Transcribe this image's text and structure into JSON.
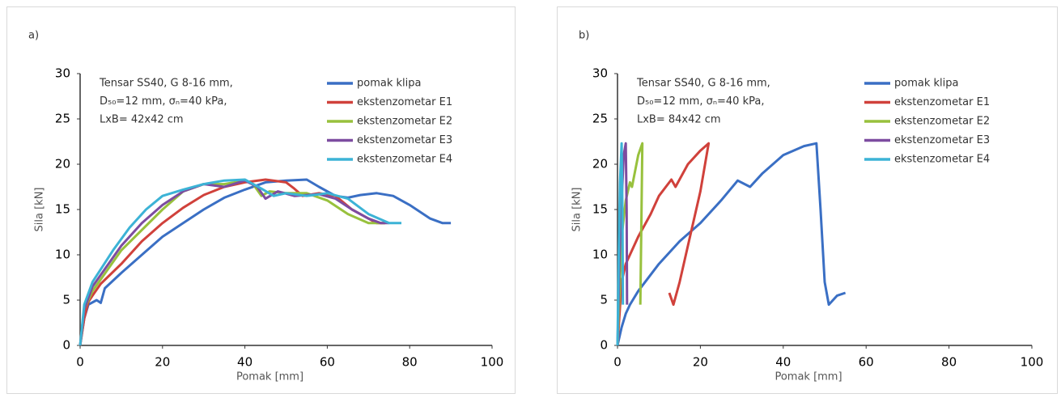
{
  "chart_data": [
    {
      "type": "line",
      "panel_label": "a)",
      "xlabel": "Pomak [mm]",
      "ylabel": "Sila [kN]",
      "annotations": [
        "Tensar SS40, G 8-16 mm,",
        "D₅₀=12 mm, σₙ=40 kPa,",
        "LxB= 42x42 cm"
      ],
      "xlim": [
        0,
        100
      ],
      "ylim": [
        0,
        30
      ],
      "xticks": [
        0,
        20,
        40,
        60,
        80,
        100
      ],
      "yticks": [
        0,
        5,
        10,
        15,
        20,
        25,
        30
      ],
      "series": [
        {
          "name": "pomak klipa",
          "color": "#3a6fc4",
          "x": [
            0,
            1,
            2,
            4,
            5,
            6,
            10,
            15,
            20,
            25,
            30,
            35,
            40,
            45,
            50,
            55,
            58,
            62,
            65,
            68,
            72,
            76,
            80,
            85,
            88,
            90
          ],
          "values": [
            0,
            3,
            4.5,
            5,
            4.7,
            6.3,
            8,
            10,
            12,
            13.5,
            15,
            16.3,
            17.2,
            18,
            18.2,
            18.3,
            17.5,
            16.5,
            16.3,
            16.6,
            16.8,
            16.5,
            15.5,
            14,
            13.5,
            13.5
          ]
        },
        {
          "name": "ekstenzometar E1",
          "color": "#d0413b",
          "x": [
            0,
            1,
            2,
            3,
            5,
            10,
            15,
            20,
            25,
            30,
            35,
            40,
            45,
            50,
            52,
            54,
            58,
            62,
            66,
            70,
            72,
            74
          ],
          "values": [
            0,
            3,
            4.8,
            5.5,
            6.8,
            9,
            11.5,
            13.5,
            15.2,
            16.6,
            17.5,
            18,
            18.3,
            18,
            17.3,
            16.5,
            16.8,
            16.5,
            15,
            14,
            13.5,
            13.5
          ]
        },
        {
          "name": "ekstenzometar E2",
          "color": "#98c13d",
          "x": [
            0,
            1,
            3,
            10,
            20,
            25,
            30,
            35,
            40,
            42,
            44,
            46,
            50,
            55,
            60,
            65,
            70,
            74
          ],
          "values": [
            0,
            4,
            6,
            10.5,
            15,
            17,
            17.8,
            17.8,
            18.2,
            17.8,
            16.5,
            17,
            16.8,
            16.8,
            16,
            14.5,
            13.5,
            13.5
          ]
        },
        {
          "name": "ekstenzometar E3",
          "color": "#7d4ca0",
          "x": [
            0,
            1,
            3,
            10,
            15,
            20,
            25,
            30,
            35,
            40,
            43,
            45,
            48,
            52,
            58,
            62,
            66,
            70,
            73,
            75
          ],
          "values": [
            0,
            4,
            6.5,
            11,
            13.5,
            15.5,
            17,
            17.8,
            17.5,
            18.2,
            17.5,
            16.2,
            17,
            16.5,
            16.7,
            16.2,
            15,
            14,
            13.5,
            13.5
          ]
        },
        {
          "name": "ekstenzometar E4",
          "color": "#3cb3d6",
          "x": [
            0,
            1,
            3,
            8,
            12,
            16,
            20,
            25,
            30,
            35,
            40,
            44,
            47,
            50,
            55,
            60,
            65,
            70,
            75,
            78
          ],
          "values": [
            0,
            4.5,
            7,
            10.5,
            13,
            15,
            16.5,
            17.2,
            17.8,
            18.2,
            18.3,
            17.3,
            16.5,
            16.8,
            16.5,
            16.8,
            16.2,
            14.5,
            13.5,
            13.5
          ]
        }
      ]
    },
    {
      "type": "line",
      "panel_label": "b)",
      "xlabel": "Pomak [mm]",
      "ylabel": "Sila [kN]",
      "annotations": [
        "Tensar SS40, G 8-16 mm,",
        "D₅₀=12 mm, σₙ=40 kPa,",
        "LxB= 84x42 cm"
      ],
      "xlim": [
        0,
        100
      ],
      "ylim": [
        0,
        30
      ],
      "xticks": [
        0,
        20,
        40,
        60,
        80,
        100
      ],
      "yticks": [
        0,
        5,
        10,
        15,
        20,
        25,
        30
      ],
      "series": [
        {
          "name": "pomak klipa",
          "color": "#3a6fc4",
          "x": [
            0,
            1,
            2,
            3,
            5,
            10,
            15,
            20,
            25,
            29,
            32,
            35,
            40,
            45,
            48,
            49,
            50,
            51,
            53,
            55
          ],
          "values": [
            0,
            2,
            3.5,
            4.5,
            6,
            9,
            11.5,
            13.5,
            16,
            18.2,
            17.5,
            19,
            21,
            22,
            22.3,
            15,
            7,
            4.5,
            5.5,
            5.8
          ]
        },
        {
          "name": "ekstenzometar E1",
          "color": "#d0413b",
          "x": [
            0,
            1,
            2,
            5,
            8,
            10,
            13,
            14,
            17,
            20,
            22,
            20,
            17,
            15,
            13.5,
            12.5
          ],
          "values": [
            0,
            7,
            9,
            12,
            14.5,
            16.5,
            18.3,
            17.5,
            20,
            21.5,
            22.3,
            17,
            11,
            7,
            4.5,
            5.8
          ]
        },
        {
          "name": "ekstenzometar E2",
          "color": "#98c13d",
          "x": [
            0,
            1,
            2,
            3,
            3.5,
            5,
            6,
            5.8,
            5.5
          ],
          "values": [
            0,
            12,
            16,
            18,
            17.5,
            21,
            22.3,
            15,
            4.5
          ]
        },
        {
          "name": "ekstenzometar E3",
          "color": "#7d4ca0",
          "x": [
            0,
            0.5,
            1,
            1.5,
            2,
            2.2,
            2.3
          ],
          "values": [
            0,
            10,
            16,
            21,
            22.3,
            15,
            4.5
          ]
        },
        {
          "name": "ekstenzometar E4",
          "color": "#3cb3d6",
          "x": [
            0,
            0.3,
            0.6,
            1,
            1.2,
            1.3
          ],
          "values": [
            0,
            10,
            18,
            22.3,
            15,
            4.5
          ]
        }
      ]
    }
  ]
}
